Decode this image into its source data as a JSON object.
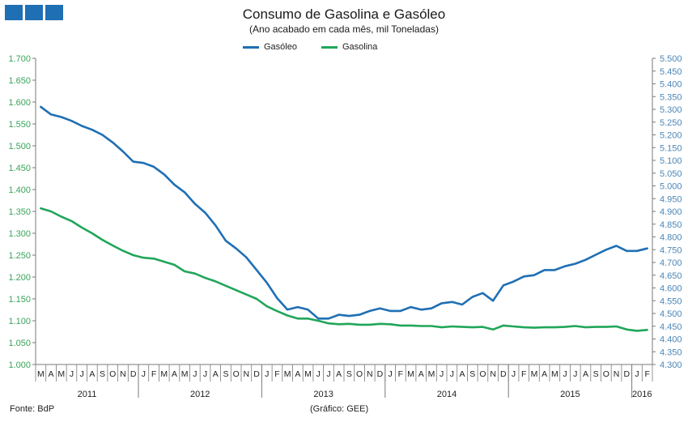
{
  "chart_data": {
    "type": "line",
    "title": "Consumo de Gasolina e Gasóleo",
    "subtitle": "(Ano acabado em cada mês,  mil Toneladas)",
    "footer_source": "Fonte: BdP",
    "footer_credit": "(Gráfico: GEE)",
    "colors": {
      "gasoleo": "#1f6fb4",
      "gasolina": "#21a65a",
      "logo": "#1f6fb4"
    },
    "legend_position": "top-center",
    "left_axis": {
      "min": 1.0,
      "max": 1.7,
      "step": 0.05,
      "labels": [
        "1.000",
        "1.050",
        "1.100",
        "1.150",
        "1.200",
        "1.250",
        "1.300",
        "1.350",
        "1.400",
        "1.450",
        "1.500",
        "1.550",
        "1.600",
        "1.650",
        "1.700"
      ]
    },
    "right_axis": {
      "min": 4.3,
      "max": 5.5,
      "step": 0.05,
      "labels": [
        "4.300",
        "4.350",
        "4.400",
        "4.450",
        "4.500",
        "4.550",
        "4.600",
        "4.650",
        "4.700",
        "4.750",
        "4.800",
        "4.850",
        "4.900",
        "4.950",
        "5.000",
        "5.050",
        "5.100",
        "5.150",
        "5.200",
        "5.250",
        "5.300",
        "5.350",
        "5.400",
        "5.450",
        "5.500"
      ]
    },
    "months": [
      "M",
      "A",
      "M",
      "J",
      "J",
      "A",
      "S",
      "O",
      "N",
      "D",
      "J",
      "F",
      "M",
      "A",
      "M",
      "J",
      "J",
      "A",
      "S",
      "O",
      "N",
      "D",
      "J",
      "F",
      "M",
      "A",
      "M",
      "J",
      "J",
      "A",
      "S",
      "O",
      "N",
      "D",
      "J",
      "F",
      "M",
      "A",
      "M",
      "J",
      "J",
      "A",
      "S",
      "O",
      "N",
      "D",
      "J",
      "F",
      "M",
      "A",
      "M",
      "J",
      "J",
      "A",
      "S",
      "O",
      "N",
      "D",
      "J",
      "F"
    ],
    "years": [
      {
        "label": "2011",
        "start": 0,
        "end": 10
      },
      {
        "label": "2012",
        "start": 10,
        "end": 22
      },
      {
        "label": "2013",
        "start": 22,
        "end": 34
      },
      {
        "label": "2014",
        "start": 34,
        "end": 46
      },
      {
        "label": "2015",
        "start": 46,
        "end": 58
      },
      {
        "label": "2016",
        "start": 58,
        "end": 60
      }
    ],
    "series": [
      {
        "name": "Gasóleo",
        "axis": "right",
        "values": [
          5.31,
          5.28,
          5.27,
          5.255,
          5.235,
          5.22,
          5.2,
          5.17,
          5.135,
          5.095,
          5.09,
          5.075,
          5.045,
          5.005,
          4.975,
          4.93,
          4.895,
          4.845,
          4.785,
          4.755,
          4.72,
          4.67,
          4.62,
          4.56,
          4.515,
          4.525,
          4.515,
          4.48,
          4.48,
          4.495,
          4.49,
          4.495,
          4.51,
          4.52,
          4.51,
          4.51,
          4.525,
          4.515,
          4.52,
          4.54,
          4.545,
          4.535,
          4.565,
          4.58,
          4.55,
          4.61,
          4.625,
          4.645,
          4.65,
          4.67,
          4.67,
          4.685,
          4.695,
          4.71,
          4.73,
          4.75,
          4.765,
          4.745,
          4.745,
          4.755
        ]
      },
      {
        "name": "Gasolina",
        "axis": "left",
        "values": [
          1.357,
          1.35,
          1.338,
          1.328,
          1.313,
          1.3,
          1.285,
          1.272,
          1.26,
          1.25,
          1.244,
          1.242,
          1.235,
          1.228,
          1.213,
          1.208,
          1.198,
          1.19,
          1.18,
          1.17,
          1.16,
          1.15,
          1.133,
          1.122,
          1.112,
          1.105,
          1.105,
          1.1,
          1.094,
          1.092,
          1.093,
          1.091,
          1.091,
          1.093,
          1.092,
          1.089,
          1.089,
          1.088,
          1.088,
          1.085,
          1.087,
          1.086,
          1.085,
          1.086,
          1.08,
          1.089,
          1.087,
          1.085,
          1.084,
          1.085,
          1.085,
          1.086,
          1.088,
          1.085,
          1.086,
          1.086,
          1.087,
          1.08,
          1.077,
          1.079
        ]
      }
    ]
  }
}
